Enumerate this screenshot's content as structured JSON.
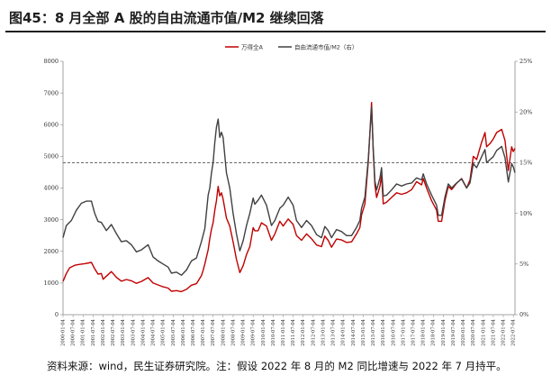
{
  "figure": {
    "title": "图45：8 月全部 A 股的自由流通市值/M2 继续回落",
    "source": "资料来源：wind，民生证券研究院。注：假设 2022 年 8 月的 M2 同比增速与 2022 年 7 月持平。"
  },
  "colors": {
    "series_a": "#c00000",
    "series_b": "#404040",
    "reference_line": "#555555",
    "axis": "#888888"
  },
  "chart_data": {
    "type": "line",
    "title": "",
    "xlabel": "",
    "ylabel": "",
    "y2label": "",
    "grid": false,
    "legend_position": "top-center",
    "x_start": "2000-01",
    "x_end": "2022-08",
    "xlim": [
      "2000-01",
      "2022-08"
    ],
    "x_tick_labels": [
      "2000-01-04",
      "2000-07-04",
      "2001-01-04",
      "2001-07-04",
      "2002-01-04",
      "2002-07-04",
      "2003-01-04",
      "2003-07-04",
      "2004-01-04",
      "2004-07-04",
      "2005-01-04",
      "2005-07-04",
      "2006-01-04",
      "2006-07-04",
      "2007-01-04",
      "2007-07-04",
      "2008-01-04",
      "2008-07-04",
      "2009-01-04",
      "2009-07-04",
      "2010-01-04",
      "2010-07-04",
      "2011-01-04",
      "2011-07-04",
      "2012-01-04",
      "2012-07-04",
      "2013-01-04",
      "2013-07-04",
      "2014-01-04",
      "2014-07-04",
      "2015-01-04",
      "2015-07-04",
      "2016-01-04",
      "2016-07-04",
      "2017-01-04",
      "2017-07-04",
      "2018-01-04",
      "2018-07-04",
      "2019-01-04",
      "2019-07-04",
      "2020-01-04",
      "2020-07-04",
      "2021-01-04",
      "2021-07-04",
      "2022-01-04",
      "2022-07-04"
    ],
    "ylim": [
      0,
      8000
    ],
    "y_ticks": [
      0,
      1000,
      2000,
      3000,
      4000,
      5000,
      6000,
      7000,
      8000
    ],
    "y_tick_labels": [
      "0",
      "1000",
      "2000",
      "3000",
      "4000",
      "5000",
      "6000",
      "7000",
      "8000"
    ],
    "y2lim": [
      0,
      25
    ],
    "y2_ticks": [
      0,
      5,
      10,
      15,
      20,
      25
    ],
    "y2_tick_labels": [
      "0%",
      "5%",
      "10%",
      "15%",
      "20%",
      "25%"
    ],
    "reference_line": {
      "axis": "right",
      "value": 15,
      "style": "dashed"
    },
    "series": [
      {
        "name": "万得全A",
        "axis": "left",
        "values": [
          [
            "2000-01",
            1050
          ],
          [
            "2000-03",
            1300
          ],
          [
            "2000-05",
            1480
          ],
          [
            "2000-08",
            1560
          ],
          [
            "2000-11",
            1590
          ],
          [
            "2001-02",
            1610
          ],
          [
            "2001-06",
            1650
          ],
          [
            "2001-08",
            1450
          ],
          [
            "2001-10",
            1280
          ],
          [
            "2001-12",
            1300
          ],
          [
            "2002-01",
            1120
          ],
          [
            "2002-06",
            1360
          ],
          [
            "2002-09",
            1180
          ],
          [
            "2002-12",
            1060
          ],
          [
            "2003-03",
            1110
          ],
          [
            "2003-06",
            1070
          ],
          [
            "2003-09",
            990
          ],
          [
            "2003-12",
            1050
          ],
          [
            "2004-04",
            1170
          ],
          [
            "2004-07",
            1000
          ],
          [
            "2004-10",
            940
          ],
          [
            "2005-01",
            880
          ],
          [
            "2005-04",
            840
          ],
          [
            "2005-06",
            740
          ],
          [
            "2005-09",
            760
          ],
          [
            "2005-12",
            730
          ],
          [
            "2006-03",
            800
          ],
          [
            "2006-06",
            930
          ],
          [
            "2006-09",
            980
          ],
          [
            "2006-12",
            1230
          ],
          [
            "2007-01",
            1400
          ],
          [
            "2007-02",
            1600
          ],
          [
            "2007-04",
            2050
          ],
          [
            "2007-05",
            2400
          ],
          [
            "2007-06",
            2700
          ],
          [
            "2007-07",
            2900
          ],
          [
            "2007-08",
            3300
          ],
          [
            "2007-09",
            3600
          ],
          [
            "2007-10",
            4050
          ],
          [
            "2007-11",
            3750
          ],
          [
            "2007-12",
            3850
          ],
          [
            "2008-01",
            3650
          ],
          [
            "2008-03",
            3050
          ],
          [
            "2008-05",
            2800
          ],
          [
            "2008-07",
            2300
          ],
          [
            "2008-09",
            1750
          ],
          [
            "2008-11",
            1330
          ],
          [
            "2009-01",
            1550
          ],
          [
            "2009-03",
            1900
          ],
          [
            "2009-05",
            2150
          ],
          [
            "2009-07",
            2750
          ],
          [
            "2009-08",
            2650
          ],
          [
            "2009-10",
            2650
          ],
          [
            "2009-12",
            2900
          ],
          [
            "2010-03",
            2800
          ],
          [
            "2010-06",
            2350
          ],
          [
            "2010-08",
            2550
          ],
          [
            "2010-11",
            2950
          ],
          [
            "2011-01",
            2800
          ],
          [
            "2011-04",
            3020
          ],
          [
            "2011-07",
            2850
          ],
          [
            "2011-09",
            2500
          ],
          [
            "2011-12",
            2350
          ],
          [
            "2012-03",
            2550
          ],
          [
            "2012-06",
            2400
          ],
          [
            "2012-09",
            2200
          ],
          [
            "2012-12",
            2150
          ],
          [
            "2013-02",
            2480
          ],
          [
            "2013-04",
            2350
          ],
          [
            "2013-06",
            2130
          ],
          [
            "2013-09",
            2390
          ],
          [
            "2013-12",
            2360
          ],
          [
            "2014-03",
            2280
          ],
          [
            "2014-06",
            2300
          ],
          [
            "2014-09",
            2550
          ],
          [
            "2014-11",
            2750
          ],
          [
            "2014-12",
            3150
          ],
          [
            "2015-02",
            3500
          ],
          [
            "2015-04",
            4800
          ],
          [
            "2015-06",
            6700
          ],
          [
            "2015-07",
            5200
          ],
          [
            "2015-08",
            4100
          ],
          [
            "2015-09",
            3700
          ],
          [
            "2015-11",
            4050
          ],
          [
            "2015-12",
            4400
          ],
          [
            "2016-01",
            3500
          ],
          [
            "2016-03",
            3550
          ],
          [
            "2016-06",
            3700
          ],
          [
            "2016-09",
            3850
          ],
          [
            "2016-12",
            3800
          ],
          [
            "2017-03",
            3850
          ],
          [
            "2017-06",
            3950
          ],
          [
            "2017-09",
            4200
          ],
          [
            "2017-12",
            4100
          ],
          [
            "2018-01",
            4300
          ],
          [
            "2018-03",
            4000
          ],
          [
            "2018-06",
            3600
          ],
          [
            "2018-09",
            3300
          ],
          [
            "2018-10",
            2950
          ],
          [
            "2018-12",
            2950
          ],
          [
            "2019-02",
            3600
          ],
          [
            "2019-04",
            4050
          ],
          [
            "2019-06",
            3950
          ],
          [
            "2019-09",
            4150
          ],
          [
            "2019-12",
            4300
          ],
          [
            "2020-03",
            4000
          ],
          [
            "2020-05",
            4250
          ],
          [
            "2020-07",
            5000
          ],
          [
            "2020-09",
            4900
          ],
          [
            "2020-12",
            5450
          ],
          [
            "2021-02",
            5750
          ],
          [
            "2021-03",
            5300
          ],
          [
            "2021-05",
            5400
          ],
          [
            "2021-07",
            5550
          ],
          [
            "2021-09",
            5750
          ],
          [
            "2021-12",
            5850
          ],
          [
            "2022-02",
            5500
          ],
          [
            "2022-04",
            4550
          ],
          [
            "2022-06",
            5300
          ],
          [
            "2022-07",
            5150
          ],
          [
            "2022-08",
            5250
          ]
        ]
      },
      {
        "name": "自由流通市值/M2（右）",
        "axis": "right",
        "values": [
          [
            "2000-01",
            7.6
          ],
          [
            "2000-03",
            8.8
          ],
          [
            "2000-06",
            9.3
          ],
          [
            "2000-09",
            10.3
          ],
          [
            "2000-12",
            11.0
          ],
          [
            "2001-03",
            11.2
          ],
          [
            "2001-06",
            11.2
          ],
          [
            "2001-08",
            10.0
          ],
          [
            "2001-10",
            9.2
          ],
          [
            "2001-12",
            9.1
          ],
          [
            "2002-03",
            8.3
          ],
          [
            "2002-06",
            8.9
          ],
          [
            "2002-09",
            8.0
          ],
          [
            "2002-12",
            7.2
          ],
          [
            "2003-03",
            7.3
          ],
          [
            "2003-06",
            6.9
          ],
          [
            "2003-09",
            6.2
          ],
          [
            "2003-12",
            6.4
          ],
          [
            "2004-04",
            6.9
          ],
          [
            "2004-07",
            5.7
          ],
          [
            "2004-10",
            5.3
          ],
          [
            "2005-01",
            5.0
          ],
          [
            "2005-04",
            4.7
          ],
          [
            "2005-06",
            4.1
          ],
          [
            "2005-09",
            4.2
          ],
          [
            "2005-12",
            3.9
          ],
          [
            "2006-03",
            4.4
          ],
          [
            "2006-06",
            5.3
          ],
          [
            "2006-09",
            5.6
          ],
          [
            "2006-12",
            7.2
          ],
          [
            "2007-02",
            8.5
          ],
          [
            "2007-04",
            11.8
          ],
          [
            "2007-05",
            12.5
          ],
          [
            "2007-06",
            14.0
          ],
          [
            "2007-07",
            15.0
          ],
          [
            "2007-08",
            17.0
          ],
          [
            "2007-09",
            18.5
          ],
          [
            "2007-10",
            19.3
          ],
          [
            "2007-11",
            17.5
          ],
          [
            "2007-12",
            18.0
          ],
          [
            "2008-01",
            17.5
          ],
          [
            "2008-03",
            14.0
          ],
          [
            "2008-05",
            12.5
          ],
          [
            "2008-07",
            10.0
          ],
          [
            "2008-09",
            8.0
          ],
          [
            "2008-11",
            6.3
          ],
          [
            "2009-01",
            7.3
          ],
          [
            "2009-03",
            8.8
          ],
          [
            "2009-05",
            10.0
          ],
          [
            "2009-07",
            11.5
          ],
          [
            "2009-08",
            10.9
          ],
          [
            "2009-10",
            11.3
          ],
          [
            "2009-12",
            11.8
          ],
          [
            "2010-03",
            10.8
          ],
          [
            "2010-06",
            8.8
          ],
          [
            "2010-08",
            9.3
          ],
          [
            "2010-11",
            10.5
          ],
          [
            "2011-01",
            10.8
          ],
          [
            "2011-04",
            11.6
          ],
          [
            "2011-07",
            10.8
          ],
          [
            "2011-09",
            9.3
          ],
          [
            "2011-12",
            8.6
          ],
          [
            "2012-03",
            9.3
          ],
          [
            "2012-06",
            8.8
          ],
          [
            "2012-09",
            7.9
          ],
          [
            "2012-12",
            7.6
          ],
          [
            "2013-02",
            8.7
          ],
          [
            "2013-04",
            8.3
          ],
          [
            "2013-06",
            7.6
          ],
          [
            "2013-09",
            8.4
          ],
          [
            "2013-12",
            8.2
          ],
          [
            "2014-03",
            7.8
          ],
          [
            "2014-06",
            7.8
          ],
          [
            "2014-09",
            8.6
          ],
          [
            "2014-11",
            9.3
          ],
          [
            "2014-12",
            10.5
          ],
          [
            "2015-02",
            11.6
          ],
          [
            "2015-04",
            15.3
          ],
          [
            "2015-06",
            20.5
          ],
          [
            "2015-07",
            16.5
          ],
          [
            "2015-08",
            13.2
          ],
          [
            "2015-09",
            12.3
          ],
          [
            "2015-11",
            13.5
          ],
          [
            "2015-12",
            14.5
          ],
          [
            "2016-01",
            11.7
          ],
          [
            "2016-03",
            11.8
          ],
          [
            "2016-06",
            12.3
          ],
          [
            "2016-09",
            12.9
          ],
          [
            "2016-12",
            12.7
          ],
          [
            "2017-03",
            12.9
          ],
          [
            "2017-06",
            13.0
          ],
          [
            "2017-09",
            13.5
          ],
          [
            "2017-12",
            13.3
          ],
          [
            "2018-01",
            13.9
          ],
          [
            "2018-03",
            12.9
          ],
          [
            "2018-06",
            11.8
          ],
          [
            "2018-09",
            10.8
          ],
          [
            "2018-10",
            9.8
          ],
          [
            "2018-12",
            9.8
          ],
          [
            "2019-02",
            11.6
          ],
          [
            "2019-04",
            12.9
          ],
          [
            "2019-06",
            12.5
          ],
          [
            "2019-09",
            13.0
          ],
          [
            "2019-12",
            13.4
          ],
          [
            "2020-03",
            12.5
          ],
          [
            "2020-05",
            13.0
          ],
          [
            "2020-07",
            14.9
          ],
          [
            "2020-09",
            14.5
          ],
          [
            "2020-12",
            15.6
          ],
          [
            "2021-02",
            16.3
          ],
          [
            "2021-03",
            15.0
          ],
          [
            "2021-05",
            15.3
          ],
          [
            "2021-07",
            15.6
          ],
          [
            "2021-09",
            16.2
          ],
          [
            "2021-12",
            16.6
          ],
          [
            "2022-02",
            15.5
          ],
          [
            "2022-04",
            13.1
          ],
          [
            "2022-06",
            14.9
          ],
          [
            "2022-07",
            14.6
          ],
          [
            "2022-08",
            14.0
          ]
        ]
      }
    ]
  }
}
